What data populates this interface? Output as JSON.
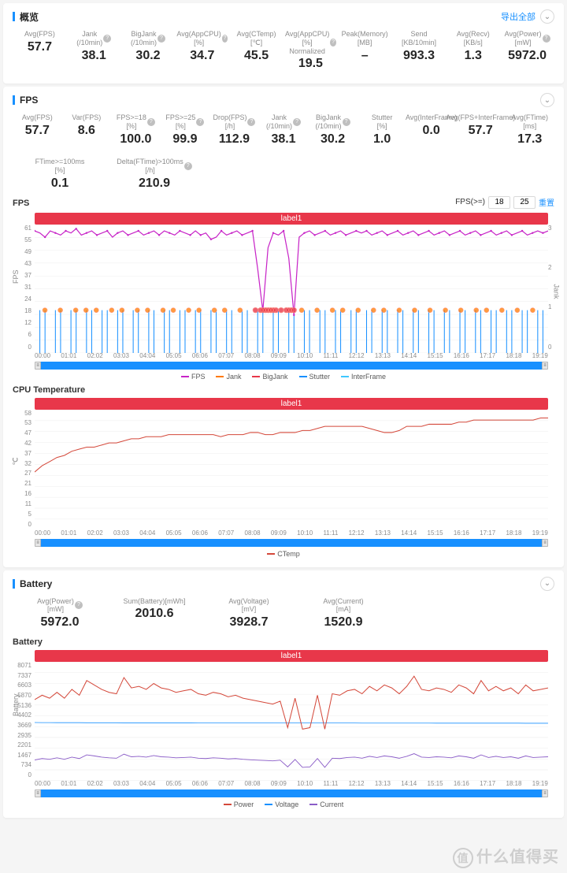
{
  "colors": {
    "accent": "#1890ff",
    "redbar": "#e8374a",
    "fps": "#c724c7",
    "jank": "#ff7a00",
    "bigjank": "#e8374a",
    "stutter": "#1890ff",
    "interframe": "#40c8ff",
    "ctemp": "#d4483a",
    "power": "#d4483a",
    "voltage": "#1890ff",
    "current": "#8a5cc7",
    "grid": "#ededed"
  },
  "overview": {
    "title": "概览",
    "export": "导出全部",
    "items": [
      {
        "l": "Avg(FPS)",
        "v": "57.7"
      },
      {
        "l": "Jank (/10min)",
        "v": "38.1",
        "h": 1
      },
      {
        "l": "BigJank (/10min)",
        "v": "30.2",
        "h": 1
      },
      {
        "l": "Avg(AppCPU) [%]",
        "v": "34.7",
        "h": 1
      },
      {
        "l": "Avg(CTemp) [℃]",
        "v": "45.5"
      },
      {
        "l": "Avg(AppCPU) [%] Normalized",
        "v": "19.5",
        "h": 1
      },
      {
        "l": "Peak(Memory) [MB]",
        "v": "–"
      },
      {
        "l": "Send [KB/10min]",
        "v": "993.3"
      },
      {
        "l": "Avg(Recv) [KB/s]",
        "v": "1.3"
      },
      {
        "l": "Avg(Power) [mW]",
        "v": "5972.0",
        "h": 1
      }
    ]
  },
  "fps": {
    "title": "FPS",
    "items": [
      {
        "l": "Avg(FPS)",
        "v": "57.7"
      },
      {
        "l": "Var(FPS)",
        "v": "8.6"
      },
      {
        "l": "FPS>=18 [%]",
        "v": "100.0",
        "h": 1
      },
      {
        "l": "FPS>=25 [%]",
        "v": "99.9",
        "h": 1
      },
      {
        "l": "Drop(FPS) [/h]",
        "v": "112.9",
        "h": 1
      },
      {
        "l": "Jank (/10min)",
        "v": "38.1",
        "h": 1
      },
      {
        "l": "BigJank (/10min)",
        "v": "30.2",
        "h": 1
      },
      {
        "l": "Stutter [%]",
        "v": "1.0"
      },
      {
        "l": "Avg(InterFrame)",
        "v": "0.0"
      },
      {
        "l": "Avg(FPS+InterFrame)",
        "v": "57.7"
      },
      {
        "l": "Avg(FTime) [ms]",
        "v": "17.3"
      }
    ],
    "items2": [
      {
        "l": "FTime>=100ms [%]",
        "v": "0.1"
      },
      {
        "l": "Delta(FTime)>100ms [/h]",
        "v": "210.9",
        "h": 1
      }
    ],
    "chartTitle": "FPS",
    "fpsGteLabel": "FPS(>=)",
    "thr1": "18",
    "thr2": "25",
    "reset": "重置",
    "bandLabel": "label1",
    "yL": [
      "61",
      "55",
      "49",
      "43",
      "37",
      "31",
      "24",
      "18",
      "12",
      "6",
      "0"
    ],
    "yR": [
      "3",
      "2",
      "1",
      "0"
    ],
    "yLname": "FPS",
    "yRname": "Jank",
    "x": [
      "00:00",
      "01:01",
      "02:02",
      "03:03",
      "04:04",
      "05:05",
      "06:06",
      "07:07",
      "08:08",
      "09:09",
      "10:10",
      "11:11",
      "12:12",
      "13:13",
      "14:14",
      "15:15",
      "16:16",
      "17:17",
      "18:18",
      "19:19"
    ],
    "legend": [
      [
        "FPS",
        "#c724c7"
      ],
      [
        "Jank",
        "#ff7a00"
      ],
      [
        "BigJank",
        "#e8374a"
      ],
      [
        "Stutter",
        "#1890ff"
      ],
      [
        "InterFrame",
        "#40c8ff"
      ]
    ],
    "fpsSeries": [
      58,
      57,
      55,
      58,
      57,
      56,
      58,
      57,
      59,
      56,
      57,
      58,
      56,
      57,
      58,
      55,
      57,
      58,
      56,
      57,
      58,
      56,
      57,
      58,
      56,
      58,
      57,
      56,
      58,
      57,
      56,
      58,
      56,
      57,
      54,
      55,
      58,
      56,
      57,
      58,
      56,
      57,
      58,
      40,
      20,
      50,
      57,
      56,
      58,
      45,
      18,
      55,
      57,
      58,
      56,
      57,
      58,
      56,
      57,
      58,
      56,
      57,
      58,
      57,
      58,
      56,
      57,
      58,
      56,
      57,
      58,
      56,
      57,
      58,
      56,
      57,
      58,
      56,
      57,
      58,
      56,
      57,
      58,
      56,
      57,
      58,
      56,
      57,
      58,
      56,
      57,
      58,
      56,
      57,
      58,
      56,
      57,
      58,
      57,
      58
    ],
    "stutterSeries": [
      0,
      1,
      1,
      0,
      1,
      1,
      0,
      1,
      1,
      0,
      1,
      1,
      0,
      1,
      1,
      0,
      1,
      1,
      0,
      1,
      1,
      0,
      1,
      1,
      0,
      1,
      1,
      0,
      1,
      1,
      0,
      1,
      1,
      0,
      1,
      1,
      0,
      1,
      1,
      0,
      1,
      1,
      0,
      1,
      1,
      0,
      1,
      1,
      0,
      1,
      1,
      0,
      1,
      1,
      0,
      1,
      1,
      0,
      1,
      1,
      0,
      1,
      1,
      0,
      1,
      1,
      0,
      1,
      1,
      0,
      1,
      1,
      0,
      1,
      1,
      0,
      1,
      1,
      0,
      1,
      1,
      0,
      1,
      1,
      0,
      1,
      1,
      0,
      1,
      1,
      0,
      1,
      1,
      0,
      1,
      1,
      0,
      1,
      1,
      0
    ],
    "jankDots": [
      0.02,
      0.05,
      0.08,
      0.1,
      0.12,
      0.15,
      0.17,
      0.2,
      0.22,
      0.25,
      0.27,
      0.3,
      0.32,
      0.35,
      0.37,
      0.4,
      0.46,
      0.52,
      0.55,
      0.58,
      0.6,
      0.63,
      0.66,
      0.68,
      0.71,
      0.74,
      0.77,
      0.8,
      0.83,
      0.86,
      0.88,
      0.91,
      0.94,
      0.97
    ],
    "bigJankClump": [
      0.43,
      0.44,
      0.445,
      0.45,
      0.455,
      0.46,
      0.465,
      0.47,
      0.48,
      0.49,
      0.495,
      0.5,
      0.505
    ]
  },
  "cputemp": {
    "title": "CPU Temperature",
    "bandLabel": "label1",
    "y": [
      "58",
      "53",
      "47",
      "42",
      "37",
      "32",
      "27",
      "21",
      "16",
      "11",
      "5",
      "0"
    ],
    "yname": "℃",
    "x": [
      "00:00",
      "01:01",
      "02:02",
      "03:03",
      "04:04",
      "05:05",
      "06:06",
      "07:07",
      "08:08",
      "09:09",
      "10:10",
      "11:11",
      "12:12",
      "13:13",
      "14:14",
      "15:15",
      "16:16",
      "17:17",
      "18:18",
      "19:19"
    ],
    "legend": [
      [
        "CTemp",
        "#d4483a"
      ]
    ],
    "series": [
      28,
      31,
      33,
      35,
      36,
      38,
      39,
      40,
      40,
      41,
      42,
      42,
      43,
      44,
      44,
      45,
      45,
      45,
      46,
      46,
      46,
      46,
      46,
      46,
      46,
      45,
      46,
      46,
      46,
      47,
      47,
      46,
      46,
      47,
      47,
      47,
      48,
      48,
      49,
      50,
      50,
      50,
      50,
      50,
      50,
      49,
      48,
      47,
      47,
      48,
      50,
      50,
      50,
      51,
      51,
      51,
      51,
      52,
      52,
      53,
      53,
      53,
      53,
      53,
      53,
      53,
      53,
      53,
      54,
      54
    ]
  },
  "battery": {
    "title": "Battery",
    "items": [
      {
        "l": "Avg(Power) [mW]",
        "v": "5972.0",
        "h": 1
      },
      {
        "l": "Sum(Battery)[mWh]",
        "v": "2010.6"
      },
      {
        "l": "Avg(Voltage) [mV]",
        "v": "3928.7"
      },
      {
        "l": "Avg(Current) [mA]",
        "v": "1520.9"
      }
    ],
    "chartTitle": "Battery",
    "bandLabel": "label1",
    "y": [
      "8071",
      "7337",
      "6603",
      "5870",
      "5136",
      "4402",
      "3669",
      "2935",
      "2201",
      "1467",
      "734",
      "0"
    ],
    "yname": "Battery",
    "x": [
      "00:00",
      "01:01",
      "02:02",
      "03:03",
      "04:04",
      "05:05",
      "06:06",
      "07:07",
      "08:08",
      "09:09",
      "10:10",
      "11:11",
      "12:12",
      "13:13",
      "14:14",
      "15:15",
      "16:16",
      "17:17",
      "18:18",
      "19:19"
    ],
    "legend": [
      [
        "Power",
        "#d4483a"
      ],
      [
        "Voltage",
        "#1890ff"
      ],
      [
        "Current",
        "#8a5cc7"
      ]
    ],
    "power": [
      5500,
      5800,
      5600,
      6000,
      5600,
      6200,
      5800,
      6800,
      6500,
      6200,
      6000,
      5900,
      7000,
      6300,
      6400,
      6200,
      6600,
      6300,
      6200,
      6000,
      6100,
      6200,
      5900,
      5800,
      6000,
      5900,
      5700,
      5800,
      5600,
      5500,
      5400,
      5300,
      5200,
      5400,
      3600,
      5600,
      3500,
      3600,
      5800,
      3500,
      5900,
      5800,
      6100,
      6200,
      5900,
      6400,
      6100,
      6500,
      6300,
      5900,
      6400,
      7100,
      6200,
      6100,
      6300,
      6200,
      6000,
      6500,
      6300,
      5900,
      6800,
      6100,
      6400,
      6100,
      6300,
      5900,
      6500,
      6100,
      6200,
      6300
    ],
    "voltage": [
      3950,
      3945,
      3942,
      3940,
      3938,
      3937,
      3935,
      3934,
      3933,
      3932,
      3931,
      3930,
      3929,
      3928,
      3928,
      3927,
      3926,
      3926,
      3925,
      3925,
      3924,
      3924,
      3923,
      3923,
      3922,
      3922,
      3921,
      3921,
      3920,
      3920,
      3919,
      3919,
      3918,
      3918,
      3917,
      3917,
      3916,
      3916,
      3915,
      3915,
      3914,
      3914,
      3913,
      3913,
      3912,
      3912,
      3911,
      3911,
      3910,
      3910,
      3909,
      3909,
      3908,
      3908,
      3907,
      3907,
      3906,
      3906,
      3905,
      3905,
      3904,
      3904,
      3903,
      3903,
      3902,
      3902,
      3901,
      3901,
      3900,
      3900
    ],
    "current": [
      1400,
      1500,
      1450,
      1550,
      1450,
      1600,
      1500,
      1750,
      1680,
      1600,
      1550,
      1520,
      1800,
      1620,
      1650,
      1600,
      1700,
      1620,
      1600,
      1550,
      1570,
      1600,
      1520,
      1500,
      1550,
      1520,
      1470,
      1500,
      1450,
      1420,
      1390,
      1370,
      1340,
      1390,
      930,
      1440,
      900,
      930,
      1500,
      900,
      1520,
      1500,
      1570,
      1600,
      1520,
      1650,
      1570,
      1680,
      1620,
      1520,
      1650,
      1830,
      1600,
      1570,
      1620,
      1600,
      1550,
      1680,
      1620,
      1520,
      1750,
      1570,
      1650,
      1570,
      1620,
      1520,
      1680,
      1570,
      1600,
      1620
    ]
  },
  "watermark": "什么值得买",
  "wmIcon": "值"
}
